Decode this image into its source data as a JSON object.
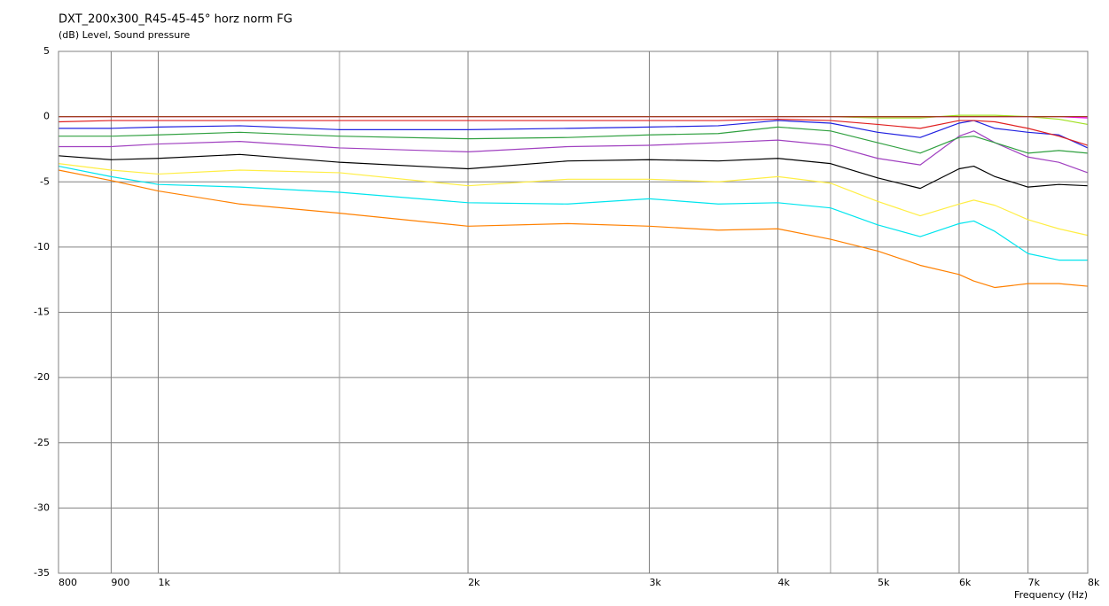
{
  "chart_data": {
    "type": "line",
    "title": "DXT_200x300_R45-45-45° horz norm FG",
    "subtitle": "(dB)  Level, Sound pressure",
    "x_label": "Frequency  (Hz)",
    "x_scale": "log",
    "grid": true,
    "xlim": [
      800,
      8000
    ],
    "ylim": [
      -35,
      5
    ],
    "xticks": [
      800,
      900,
      {
        "value": 1000,
        "label": "1k"
      },
      {
        "value": 2000,
        "label": "2k"
      },
      {
        "value": 3000,
        "label": "3k"
      },
      {
        "value": 4000,
        "label": "4k"
      },
      {
        "value": 5000,
        "label": "5k"
      },
      {
        "value": 6000,
        "label": "6k"
      },
      {
        "value": 7000,
        "label": "7k"
      },
      {
        "value": 8000,
        "label": "8k"
      }
    ],
    "minor_xticks": [
      1500,
      4500
    ],
    "yticks": [
      5,
      0,
      -5,
      -10,
      -15,
      -20,
      -25,
      -30,
      -35
    ],
    "x": [
      800,
      900,
      1000,
      1200,
      1500,
      2000,
      2500,
      3000,
      3500,
      4000,
      4500,
      5000,
      5500,
      6000,
      6200,
      6500,
      7000,
      7500,
      8000
    ],
    "series": [
      {
        "color": "#ff8000",
        "values": [
          -4.1,
          -4.9,
          -5.7,
          -6.7,
          -7.4,
          -8.4,
          -8.2,
          -8.4,
          -8.7,
          -8.6,
          -9.4,
          -10.3,
          -11.4,
          -12.1,
          -12.6,
          -13.1,
          -12.8,
          -12.8,
          -13.0
        ]
      },
      {
        "color": "#00e5ee",
        "values": [
          -3.8,
          -4.6,
          -5.2,
          -5.4,
          -5.8,
          -6.6,
          -6.7,
          -6.3,
          -6.7,
          -6.6,
          -7.0,
          -8.3,
          -9.2,
          -8.2,
          -8.0,
          -8.8,
          -10.5,
          -11.0,
          -11.0
        ]
      },
      {
        "color": "#ffee44",
        "values": [
          -3.6,
          -4.1,
          -4.4,
          -4.1,
          -4.3,
          -5.3,
          -4.8,
          -4.8,
          -5.0,
          -4.6,
          -5.1,
          -6.5,
          -7.6,
          -6.7,
          -6.4,
          -6.8,
          -7.9,
          -8.6,
          -9.1
        ]
      },
      {
        "color": "#000000",
        "values": [
          -3.0,
          -3.3,
          -3.2,
          -2.9,
          -3.5,
          -4.0,
          -3.4,
          -3.3,
          -3.4,
          -3.2,
          -3.6,
          -4.7,
          -5.5,
          -4.0,
          -3.8,
          -4.6,
          -5.4,
          -5.2,
          -5.3
        ]
      },
      {
        "color": "#a040c0",
        "values": [
          -2.3,
          -2.3,
          -2.1,
          -1.9,
          -2.4,
          -2.7,
          -2.3,
          -2.2,
          -2.0,
          -1.8,
          -2.2,
          -3.2,
          -3.7,
          -1.5,
          -1.1,
          -2.0,
          -3.1,
          -3.5,
          -4.3
        ]
      },
      {
        "color": "#30a040",
        "values": [
          -1.5,
          -1.5,
          -1.4,
          -1.2,
          -1.5,
          -1.7,
          -1.6,
          -1.4,
          -1.3,
          -0.8,
          -1.1,
          -2.0,
          -2.8,
          -1.6,
          -1.5,
          -2.0,
          -2.8,
          -2.6,
          -2.8
        ]
      },
      {
        "color": "#2020e0",
        "values": [
          -0.9,
          -0.9,
          -0.8,
          -0.7,
          -1.0,
          -1.0,
          -0.9,
          -0.8,
          -0.7,
          -0.3,
          -0.5,
          -1.2,
          -1.6,
          -0.5,
          -0.3,
          -0.9,
          -1.2,
          -1.4,
          -2.4
        ]
      },
      {
        "color": "#e02020",
        "values": [
          -0.4,
          -0.3,
          -0.3,
          -0.3,
          -0.3,
          -0.3,
          -0.3,
          -0.3,
          -0.3,
          -0.2,
          -0.3,
          -0.6,
          -0.9,
          -0.3,
          -0.3,
          -0.4,
          -0.9,
          -1.5,
          -2.2
        ]
      },
      {
        "color": "#a0e020",
        "values": [
          0,
          0,
          0,
          0,
          0,
          0,
          0,
          0,
          0,
          0,
          0,
          -0.1,
          -0.1,
          0.1,
          0.1,
          0.1,
          0.0,
          -0.2,
          -0.6
        ]
      },
      {
        "color": "#ff00ff",
        "values": [
          0,
          0,
          0,
          0,
          0,
          0,
          0,
          0,
          0,
          0,
          0,
          0,
          0,
          0,
          0,
          0,
          0,
          0,
          -0.1
        ]
      },
      {
        "color": "#a04020",
        "values": [
          0,
          0,
          0,
          0,
          0,
          0,
          0,
          0,
          0,
          0,
          0,
          0,
          0,
          0,
          0,
          0,
          0,
          0,
          0
        ]
      }
    ]
  }
}
